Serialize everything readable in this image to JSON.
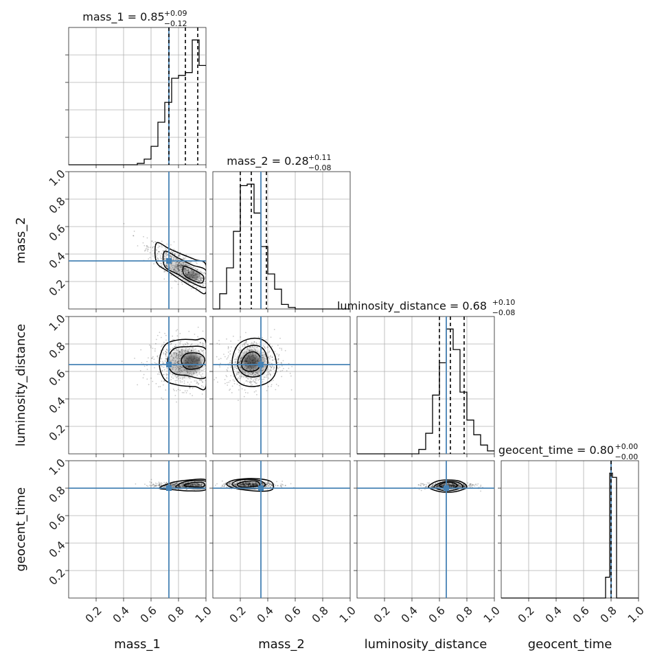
{
  "chart_data": {
    "type": "corner",
    "parameters": [
      {
        "name": "mass_1",
        "title_prefix": "mass_1 = ",
        "median": "0.85",
        "plus": "+0.09",
        "minus": "−0.12",
        "truth": 0.73,
        "quantiles": [
          0.73,
          0.85,
          0.94
        ],
        "hist_edges": [
          0.5,
          0.55,
          0.6,
          0.65,
          0.7,
          0.75,
          0.8,
          0.85,
          0.9,
          0.95,
          1.0
        ],
        "hist_counts": [
          1,
          4,
          13,
          30,
          44,
          61,
          63,
          65,
          88,
          70
        ]
      },
      {
        "name": "mass_2",
        "title_prefix": "mass_2 = ",
        "median": "0.28",
        "plus": "+0.11",
        "minus": "−0.08",
        "truth": 0.35,
        "quantiles": [
          0.2,
          0.28,
          0.39
        ],
        "hist_edges": [
          0.05,
          0.1,
          0.15,
          0.2,
          0.25,
          0.3,
          0.35,
          0.4,
          0.45,
          0.5,
          0.55,
          0.6
        ],
        "hist_counts": [
          10,
          27,
          51,
          81,
          82,
          63,
          41,
          23,
          13,
          3,
          1
        ]
      },
      {
        "name": "luminosity_distance",
        "title_prefix": "luminosity_distance = ",
        "median": "0.68",
        "plus": "+0.10",
        "minus": "−0.08",
        "truth": 0.65,
        "quantiles": [
          0.6,
          0.68,
          0.78
        ],
        "hist_edges": [
          0.45,
          0.5,
          0.55,
          0.6,
          0.65,
          0.7,
          0.75,
          0.8,
          0.85,
          0.9,
          0.95,
          1.0
        ],
        "hist_counts": [
          3,
          14,
          40,
          62,
          85,
          71,
          42,
          23,
          13,
          6,
          2
        ]
      },
      {
        "name": "geocent_time",
        "title_prefix": "geocent_time = ",
        "median": "0.80",
        "plus": "+0.00",
        "minus": "−0.00",
        "truth": 0.8,
        "quantiles": [
          0.8
        ],
        "hist_edges": [
          0.76,
          0.79,
          0.81,
          0.84
        ],
        "hist_counts": [
          25,
          150,
          145
        ]
      }
    ],
    "axis_range": [
      0.0,
      1.0
    ],
    "tick_values": [
      0.2,
      0.4,
      0.6,
      0.8,
      1.0
    ],
    "tick_labels": [
      "0.2",
      "0.4",
      "0.6",
      "0.8",
      "1.0"
    ],
    "grid": true,
    "truth_color": "#4682b4",
    "density_color": "#000000",
    "pair_panels": [
      {
        "x": "mass_1",
        "y": "mass_2",
        "contours": [
          {
            "level": "outer",
            "points": [
              [
                0.64,
                0.48
              ],
              [
                0.73,
                0.44
              ],
              [
                0.82,
                0.4
              ],
              [
                0.92,
                0.36
              ],
              [
                1.0,
                0.32
              ],
              [
                1.0,
                0.12
              ],
              [
                0.92,
                0.15
              ],
              [
                0.82,
                0.21
              ],
              [
                0.73,
                0.27
              ],
              [
                0.64,
                0.34
              ]
            ]
          },
          {
            "level": "mid",
            "points": [
              [
                0.7,
                0.42
              ],
              [
                0.8,
                0.37
              ],
              [
                0.9,
                0.32
              ],
              [
                1.0,
                0.28
              ],
              [
                1.0,
                0.16
              ],
              [
                0.9,
                0.19
              ],
              [
                0.8,
                0.25
              ],
              [
                0.7,
                0.31
              ]
            ]
          },
          {
            "level": "inner",
            "points": [
              [
                0.84,
                0.31
              ],
              [
                0.92,
                0.28
              ],
              [
                0.98,
                0.24
              ],
              [
                0.97,
                0.19
              ],
              [
                0.9,
                0.21
              ],
              [
                0.84,
                0.25
              ]
            ]
          }
        ],
        "blobs": [
          {
            "cx": 0.9,
            "cy": 0.24,
            "sx": 0.06,
            "sy": 0.035,
            "o": 0.9
          },
          {
            "cx": 0.8,
            "cy": 0.3,
            "sx": 0.09,
            "sy": 0.05,
            "o": 0.35
          }
        ],
        "scatter": {
          "cx": 0.82,
          "cy": 0.3,
          "sx": 0.12,
          "sy": 0.09,
          "rho": -0.85,
          "n": 700
        }
      },
      {
        "x": "mass_1",
        "y": "luminosity_distance",
        "contours": [
          {
            "level": "outer",
            "points": [
              [
                0.66,
                0.66
              ],
              [
                0.7,
                0.79
              ],
              [
                0.8,
                0.83
              ],
              [
                0.92,
                0.83
              ],
              [
                1.0,
                0.81
              ],
              [
                1.0,
                0.49
              ],
              [
                0.92,
                0.49
              ],
              [
                0.8,
                0.5
              ],
              [
                0.7,
                0.54
              ]
            ]
          },
          {
            "level": "mid",
            "points": [
              [
                0.72,
                0.67
              ],
              [
                0.76,
                0.76
              ],
              [
                0.86,
                0.78
              ],
              [
                1.0,
                0.76
              ],
              [
                1.0,
                0.56
              ],
              [
                0.86,
                0.57
              ],
              [
                0.76,
                0.59
              ]
            ]
          },
          {
            "level": "inner",
            "points": [
              [
                0.82,
                0.68
              ],
              [
                0.86,
                0.73
              ],
              [
                0.95,
                0.73
              ],
              [
                0.99,
                0.69
              ],
              [
                0.96,
                0.63
              ],
              [
                0.86,
                0.62
              ]
            ]
          }
        ],
        "blobs": [
          {
            "cx": 0.9,
            "cy": 0.67,
            "sx": 0.07,
            "sy": 0.06,
            "o": 0.85
          },
          {
            "cx": 0.84,
            "cy": 0.66,
            "sx": 0.12,
            "sy": 0.1,
            "o": 0.35
          }
        ],
        "scatter": {
          "cx": 0.84,
          "cy": 0.66,
          "sx": 0.12,
          "sy": 0.09,
          "rho": 0.0,
          "n": 700
        }
      },
      {
        "x": "mass_2",
        "y": "luminosity_distance",
        "contours": [
          {
            "level": "outer",
            "points": [
              [
                0.14,
                0.66
              ],
              [
                0.18,
                0.79
              ],
              [
                0.28,
                0.84
              ],
              [
                0.38,
                0.82
              ],
              [
                0.45,
                0.72
              ],
              [
                0.46,
                0.6
              ],
              [
                0.4,
                0.52
              ],
              [
                0.28,
                0.49
              ],
              [
                0.18,
                0.53
              ]
            ]
          },
          {
            "level": "mid",
            "points": [
              [
                0.18,
                0.66
              ],
              [
                0.22,
                0.76
              ],
              [
                0.3,
                0.79
              ],
              [
                0.37,
                0.76
              ],
              [
                0.4,
                0.66
              ],
              [
                0.36,
                0.58
              ],
              [
                0.28,
                0.56
              ],
              [
                0.21,
                0.59
              ]
            ]
          },
          {
            "level": "inner",
            "points": [
              [
                0.21,
                0.67
              ],
              [
                0.25,
                0.73
              ],
              [
                0.31,
                0.74
              ],
              [
                0.35,
                0.69
              ],
              [
                0.33,
                0.62
              ],
              [
                0.27,
                0.6
              ],
              [
                0.22,
                0.62
              ]
            ]
          }
        ],
        "blobs": [
          {
            "cx": 0.28,
            "cy": 0.67,
            "sx": 0.06,
            "sy": 0.06,
            "o": 0.9
          },
          {
            "cx": 0.29,
            "cy": 0.66,
            "sx": 0.11,
            "sy": 0.1,
            "o": 0.35
          }
        ],
        "scatter": {
          "cx": 0.29,
          "cy": 0.66,
          "sx": 0.1,
          "sy": 0.09,
          "rho": 0.0,
          "n": 700
        }
      },
      {
        "x": "mass_1",
        "y": "geocent_time",
        "contours": [
          {
            "level": "outer",
            "points": [
              [
                0.66,
                0.8
              ],
              [
                0.75,
                0.84
              ],
              [
                0.88,
                0.86
              ],
              [
                1.0,
                0.86
              ],
              [
                1.0,
                0.79
              ],
              [
                0.88,
                0.78
              ],
              [
                0.75,
                0.79
              ]
            ]
          },
          {
            "level": "mid",
            "points": [
              [
                0.78,
                0.81
              ],
              [
                0.86,
                0.85
              ],
              [
                1.0,
                0.85
              ],
              [
                1.0,
                0.8
              ],
              [
                0.86,
                0.8
              ]
            ]
          },
          {
            "level": "inner",
            "points": [
              [
                0.84,
                0.82
              ],
              [
                0.9,
                0.84
              ],
              [
                0.98,
                0.84
              ],
              [
                0.98,
                0.81
              ],
              [
                0.9,
                0.81
              ]
            ]
          }
        ],
        "blobs": [
          {
            "cx": 0.9,
            "cy": 0.825,
            "sx": 0.07,
            "sy": 0.012,
            "o": 0.85
          },
          {
            "cx": 0.84,
            "cy": 0.82,
            "sx": 0.12,
            "sy": 0.02,
            "o": 0.35
          }
        ],
        "scatter": {
          "cx": 0.84,
          "cy": 0.82,
          "sx": 0.12,
          "sy": 0.012,
          "rho": 0.0,
          "n": 500
        }
      },
      {
        "x": "mass_2",
        "y": "geocent_time",
        "contours": [
          {
            "level": "outer",
            "points": [
              [
                0.1,
                0.83
              ],
              [
                0.16,
                0.86
              ],
              [
                0.3,
                0.87
              ],
              [
                0.42,
                0.85
              ],
              [
                0.44,
                0.8
              ],
              [
                0.4,
                0.78
              ],
              [
                0.3,
                0.78
              ],
              [
                0.16,
                0.8
              ]
            ]
          },
          {
            "level": "mid",
            "points": [
              [
                0.14,
                0.83
              ],
              [
                0.2,
                0.86
              ],
              [
                0.32,
                0.86
              ],
              [
                0.38,
                0.83
              ],
              [
                0.34,
                0.8
              ],
              [
                0.2,
                0.8
              ]
            ]
          },
          {
            "level": "inner",
            "points": [
              [
                0.18,
                0.83
              ],
              [
                0.24,
                0.85
              ],
              [
                0.32,
                0.85
              ],
              [
                0.34,
                0.82
              ],
              [
                0.28,
                0.81
              ],
              [
                0.2,
                0.81
              ]
            ]
          }
        ],
        "blobs": [
          {
            "cx": 0.26,
            "cy": 0.83,
            "sx": 0.07,
            "sy": 0.012,
            "o": 0.85
          },
          {
            "cx": 0.27,
            "cy": 0.83,
            "sx": 0.11,
            "sy": 0.02,
            "o": 0.35
          }
        ],
        "scatter": {
          "cx": 0.27,
          "cy": 0.825,
          "sx": 0.1,
          "sy": 0.012,
          "rho": 0.0,
          "n": 500
        }
      },
      {
        "x": "luminosity_distance",
        "y": "geocent_time",
        "contours": [
          {
            "level": "outer",
            "points": [
              [
                0.52,
                0.81
              ],
              [
                0.58,
                0.85
              ],
              [
                0.66,
                0.86
              ],
              [
                0.75,
                0.85
              ],
              [
                0.8,
                0.81
              ],
              [
                0.74,
                0.78
              ],
              [
                0.66,
                0.77
              ],
              [
                0.58,
                0.78
              ]
            ]
          },
          {
            "level": "mid",
            "points": [
              [
                0.56,
                0.81
              ],
              [
                0.61,
                0.84
              ],
              [
                0.67,
                0.85
              ],
              [
                0.74,
                0.84
              ],
              [
                0.77,
                0.81
              ],
              [
                0.72,
                0.79
              ],
              [
                0.66,
                0.78
              ],
              [
                0.6,
                0.79
              ]
            ]
          },
          {
            "level": "inner",
            "points": [
              [
                0.6,
                0.82
              ],
              [
                0.64,
                0.84
              ],
              [
                0.7,
                0.84
              ],
              [
                0.73,
                0.82
              ],
              [
                0.7,
                0.8
              ],
              [
                0.64,
                0.8
              ]
            ]
          }
        ],
        "blobs": [
          {
            "cx": 0.67,
            "cy": 0.82,
            "sx": 0.05,
            "sy": 0.012,
            "o": 0.85
          },
          {
            "cx": 0.67,
            "cy": 0.815,
            "sx": 0.09,
            "sy": 0.02,
            "o": 0.35
          }
        ],
        "scatter": {
          "cx": 0.67,
          "cy": 0.815,
          "sx": 0.09,
          "sy": 0.012,
          "rho": 0.0,
          "n": 500
        }
      }
    ]
  }
}
